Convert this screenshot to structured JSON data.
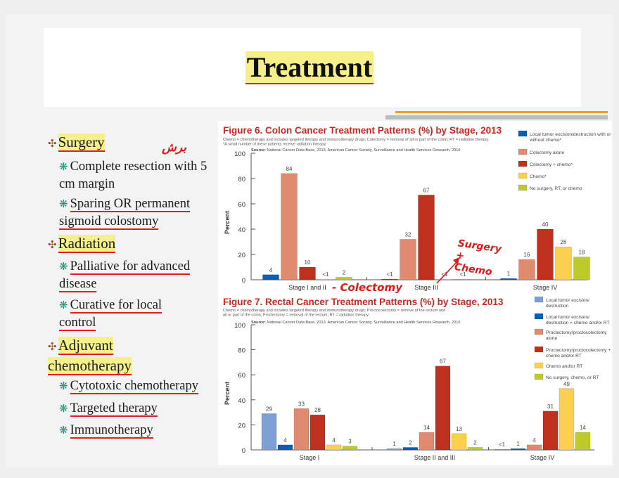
{
  "slide": {
    "title": "Treatment",
    "bullets": [
      {
        "heading": "Surgery",
        "items": [
          "Complete resection with 5 cm margin",
          "Sparing OR permanent sigmoid colostomy"
        ]
      },
      {
        "heading": "Radiation",
        "items": [
          "Palliative for advanced disease",
          "Curative for local control"
        ]
      },
      {
        "heading": "Adjuvant chemotherapy",
        "items": [
          "Cytotoxic chemotherapy",
          "Targeted therapy",
          "Immunotherapy"
        ]
      }
    ],
    "annotations": {
      "cut": "برش",
      "colectomy": "- Colectomy",
      "surgery_chemo": "Surgery + Chemo"
    }
  },
  "chart_data": [
    {
      "type": "bar",
      "title": "Figure 6. Colon Cancer Treatment Patterns (%) by Stage, 2013",
      "subtitle": "Chemo = chemotherapy and includes targeted therapy and immunotherapy drugs; Colectomy = removal of all or part of the colon; RT = radiation therapy.",
      "footnote": "*A small number of these patients receive radiation therapy.",
      "source_label": "Source:",
      "source": "National Cancer Data Base, 2013.   American Cancer Society, Surveillance and Health Services Research, 2016",
      "ylabel": "Percent",
      "ylim": [
        0,
        100
      ],
      "yticks": [
        "0",
        "20",
        "40",
        "60",
        "80",
        "100"
      ],
      "categories": [
        "Stage I and II",
        "Stage III",
        "Stage IV"
      ],
      "legend_position": "right",
      "series": [
        {
          "name": "Local tumor excision/destruction with or without chemo*",
          "color": "#0b5fb0",
          "values": [
            4,
            0.5,
            1
          ],
          "labels": [
            "4",
            "<1",
            "1"
          ]
        },
        {
          "name": "Colectomy alone",
          "color": "#e08a70",
          "values": [
            84,
            32,
            16
          ],
          "labels": [
            "84",
            "32",
            "16"
          ]
        },
        {
          "name": "Colectomy + chemo*",
          "color": "#c0301e",
          "values": [
            10,
            67,
            40
          ],
          "labels": [
            "10",
            "67",
            "40"
          ]
        },
        {
          "name": "Chemo*",
          "color": "#fcd04e",
          "values": [
            0.5,
            0.5,
            26
          ],
          "labels": [
            "<1",
            "<1",
            "26"
          ]
        },
        {
          "name": "No surgery, RT, or chemo",
          "color": "#bccb2a",
          "values": [
            2,
            0.5,
            18
          ],
          "labels": [
            "2",
            "<1",
            "18"
          ]
        }
      ]
    },
    {
      "type": "bar",
      "title": "Figure 7. Rectal Cancer Treatment Patterns (%) by Stage, 2013",
      "subtitle": "Chemo = chemotherapy and includes targeted therapy and immunotherapy drugs; Proctocolectomy = remove of the rectum and all or part of the colon; Proctectomy = removal of the rectum; RT = radiation therapy.",
      "source_label": "Source:",
      "source": "National Cancer Data Base, 2013.   American Cancer Society, Surveillance and Health Services Research, 2016",
      "ylabel": "Percent",
      "ylim": [
        0,
        100
      ],
      "yticks": [
        "0",
        "20",
        "40",
        "60",
        "80",
        "100"
      ],
      "categories": [
        "Stage I",
        "Stage II and III",
        "Stage IV"
      ],
      "legend_position": "right",
      "series": [
        {
          "name": "Local tumor excision/ destruction",
          "color": "#7d9fd3",
          "values": [
            29,
            1,
            0.5
          ],
          "labels": [
            "29",
            "1",
            "<1"
          ]
        },
        {
          "name": "Local tumor excision/ destruction + chemo and/or RT",
          "color": "#0b5fb0",
          "values": [
            4,
            2,
            1
          ],
          "labels": [
            "4",
            "2",
            "1"
          ]
        },
        {
          "name": "Proctectomy/proctocolectomy alone",
          "color": "#e08a70",
          "values": [
            33,
            14,
            4
          ],
          "labels": [
            "33",
            "14",
            "4"
          ]
        },
        {
          "name": "Proctectomy/proctocolectomy + chemo and/or RT",
          "color": "#c0301e",
          "values": [
            28,
            67,
            31
          ],
          "labels": [
            "28",
            "67",
            "31"
          ]
        },
        {
          "name": "Chemo and/or RT",
          "color": "#fcd04e",
          "values": [
            4,
            13,
            49
          ],
          "labels": [
            "4",
            "13",
            "49"
          ]
        },
        {
          "name": "No surgery, chemo, or RT",
          "color": "#bccb2a",
          "values": [
            3,
            2,
            14
          ],
          "labels": [
            "3",
            "2",
            "14"
          ]
        }
      ]
    }
  ]
}
